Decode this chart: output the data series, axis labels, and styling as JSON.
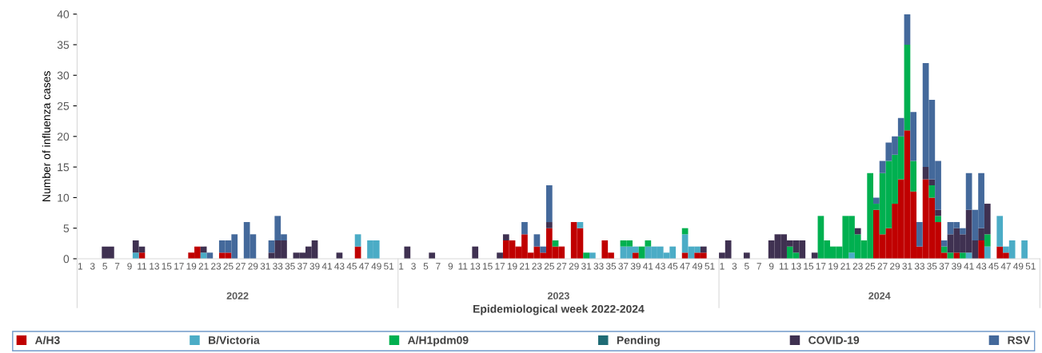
{
  "chart_data": {
    "type": "bar",
    "stacked": true,
    "ylabel": "Number of influenza cases",
    "xlabel": "Epidemiological week 2022-2024",
    "annotations": [
      "2022",
      "2023",
      "2024"
    ],
    "categories": [
      "1",
      null,
      "3",
      null,
      "5",
      null,
      "7",
      null,
      "9",
      null,
      "11",
      null,
      "13",
      null,
      "15",
      null,
      "17",
      null,
      "19",
      null,
      "21",
      null,
      "23",
      null,
      "25",
      null,
      "27",
      null,
      "29",
      null,
      "31",
      null,
      "33",
      null,
      "35",
      null,
      "37",
      null,
      "39",
      null,
      "41",
      null,
      "43",
      null,
      "45",
      null,
      "47",
      null,
      "49",
      null,
      "51",
      null,
      "1",
      null,
      "3",
      null,
      "5",
      null,
      "7",
      null,
      "9",
      null,
      "11",
      null,
      "13",
      null,
      "15",
      null,
      "17",
      null,
      "19",
      null,
      "21",
      null,
      "23",
      null,
      "25",
      null,
      "27",
      null,
      "29",
      null,
      "31",
      null,
      "33",
      null,
      "35",
      null,
      "37",
      null,
      "39",
      null,
      "41",
      null,
      "43",
      null,
      "45",
      null,
      "47",
      null,
      "49",
      null,
      "51",
      null,
      "1",
      null,
      "3",
      null,
      "5",
      null,
      "7",
      null,
      "9",
      null,
      "11",
      null,
      "13",
      null,
      "15",
      null,
      "17",
      null,
      "19",
      null,
      "21",
      null,
      "23",
      null,
      "25",
      null,
      "27",
      null,
      "29",
      null,
      "31",
      null,
      "33",
      null,
      "35",
      null,
      "37",
      null,
      "39",
      null,
      "41",
      null,
      "43",
      null,
      "45",
      null,
      "47",
      null,
      "49",
      null,
      "51",
      null
    ],
    "series": [
      {
        "name": "A/H3",
        "color": "#c00000",
        "values": [
          0,
          0,
          0,
          0,
          0,
          0,
          0,
          0,
          0,
          0,
          1,
          0,
          0,
          0,
          0,
          0,
          0,
          0,
          1,
          2,
          0,
          0,
          0,
          1,
          1,
          0,
          0,
          0,
          0,
          0,
          0,
          0,
          0,
          0,
          0,
          0,
          0,
          0,
          0,
          0,
          0,
          0,
          0,
          0,
          0,
          2,
          0,
          0,
          0,
          0,
          0,
          0,
          0,
          0,
          0,
          0,
          0,
          0,
          0,
          0,
          0,
          0,
          0,
          0,
          0,
          0,
          0,
          0,
          0,
          3,
          3,
          2,
          4,
          1,
          2,
          1,
          5,
          2,
          2,
          0,
          6,
          5,
          0,
          0,
          0,
          3,
          1,
          0,
          0,
          0,
          1,
          0,
          0,
          0,
          0,
          0,
          0,
          0,
          1,
          0,
          1,
          1,
          0,
          0,
          0,
          0,
          0,
          0,
          0,
          0,
          0,
          0,
          0,
          0,
          0,
          0,
          0,
          0,
          0,
          0,
          0,
          0,
          0,
          0,
          0,
          0,
          0,
          0,
          0,
          8,
          4,
          5,
          9,
          13,
          21,
          11,
          2,
          13,
          10,
          6,
          1,
          0,
          1,
          0,
          0,
          0,
          3,
          0,
          0,
          2,
          1,
          0,
          0,
          0,
          0,
          0
        ]
      },
      {
        "name": "B/Victoria",
        "color": "#4bacc6",
        "values": [
          0,
          0,
          0,
          0,
          0,
          0,
          0,
          0,
          0,
          1,
          0,
          0,
          0,
          0,
          0,
          0,
          0,
          0,
          0,
          0,
          1,
          0,
          0,
          0,
          0,
          0,
          0,
          0,
          0,
          0,
          0,
          0,
          0,
          0,
          0,
          0,
          0,
          0,
          0,
          0,
          0,
          0,
          0,
          0,
          0,
          2,
          0,
          3,
          3,
          0,
          0,
          0,
          0,
          0,
          0,
          0,
          0,
          0,
          0,
          0,
          0,
          0,
          0,
          0,
          0,
          0,
          0,
          0,
          0,
          0,
          0,
          0,
          0,
          0,
          0,
          0,
          0,
          0,
          0,
          0,
          0,
          1,
          0,
          1,
          0,
          0,
          0,
          0,
          2,
          2,
          1,
          0,
          2,
          2,
          2,
          1,
          2,
          0,
          3,
          2,
          1,
          0,
          0,
          0,
          0,
          0,
          0,
          0,
          0,
          0,
          0,
          0,
          0,
          0,
          0,
          0,
          0,
          0,
          0,
          0,
          0,
          0,
          0,
          0,
          0,
          1,
          0,
          0,
          0,
          0,
          0,
          0,
          0,
          0,
          0,
          0,
          0,
          0,
          0,
          0,
          0,
          0,
          0,
          0,
          1,
          0,
          0,
          2,
          0,
          5,
          1,
          3,
          0,
          3,
          0,
          0
        ]
      },
      {
        "name": "A/H1pdm09",
        "color": "#00b050",
        "values": [
          0,
          0,
          0,
          0,
          0,
          0,
          0,
          0,
          0,
          0,
          0,
          0,
          0,
          0,
          0,
          0,
          0,
          0,
          0,
          0,
          0,
          0,
          0,
          0,
          0,
          0,
          0,
          0,
          0,
          0,
          0,
          0,
          0,
          0,
          0,
          0,
          0,
          0,
          0,
          0,
          0,
          0,
          0,
          0,
          0,
          0,
          0,
          0,
          0,
          0,
          0,
          0,
          0,
          0,
          0,
          0,
          0,
          0,
          0,
          0,
          0,
          0,
          0,
          0,
          0,
          0,
          0,
          0,
          0,
          0,
          0,
          0,
          0,
          0,
          0,
          0,
          0,
          1,
          0,
          0,
          0,
          0,
          1,
          0,
          0,
          0,
          0,
          0,
          1,
          1,
          0,
          2,
          1,
          0,
          0,
          0,
          0,
          0,
          1,
          0,
          0,
          0,
          0,
          0,
          0,
          0,
          0,
          0,
          0,
          0,
          0,
          0,
          0,
          0,
          0,
          2,
          1,
          0,
          0,
          0,
          7,
          3,
          2,
          2,
          7,
          6,
          4,
          3,
          14,
          1,
          10,
          11,
          8,
          7,
          14,
          5,
          0,
          0,
          2,
          1,
          1,
          1,
          0,
          1,
          0,
          0,
          0,
          2,
          0,
          0,
          0,
          0,
          0,
          0,
          0,
          0
        ]
      },
      {
        "name": "Pending",
        "color": "#1f6b75",
        "values": [
          0,
          0,
          0,
          0,
          0,
          0,
          0,
          0,
          0,
          0,
          0,
          0,
          0,
          0,
          0,
          0,
          0,
          0,
          0,
          0,
          0,
          0,
          0,
          0,
          0,
          0,
          0,
          0,
          0,
          0,
          0,
          0,
          0,
          0,
          0,
          0,
          0,
          0,
          0,
          0,
          0,
          0,
          0,
          0,
          0,
          0,
          0,
          0,
          0,
          0,
          0,
          0,
          0,
          0,
          0,
          0,
          0,
          0,
          0,
          0,
          0,
          0,
          0,
          0,
          0,
          0,
          0,
          0,
          0,
          0,
          0,
          0,
          0,
          0,
          0,
          0,
          0,
          0,
          0,
          0,
          0,
          0,
          0,
          0,
          0,
          0,
          0,
          0,
          0,
          0,
          0,
          0,
          0,
          0,
          0,
          0,
          0,
          0,
          0,
          0,
          0,
          0,
          0,
          0,
          0,
          0,
          0,
          0,
          0,
          0,
          0,
          0,
          0,
          0,
          0,
          0,
          0,
          0,
          0,
          0,
          0,
          0,
          0,
          0,
          0,
          0,
          0,
          0,
          0,
          0,
          0,
          0,
          0,
          0,
          0,
          0,
          0,
          0,
          0,
          0,
          0,
          0,
          0,
          0,
          0,
          0,
          0,
          0,
          0,
          0,
          0,
          0,
          0,
          0,
          0,
          0
        ]
      },
      {
        "name": "COVID-19",
        "color": "#3f3151",
        "values": [
          0,
          0,
          0,
          0,
          2,
          2,
          0,
          0,
          0,
          2,
          1,
          0,
          0,
          0,
          0,
          0,
          0,
          0,
          0,
          0,
          1,
          0,
          0,
          0,
          0,
          0,
          0,
          0,
          0,
          0,
          0,
          1,
          3,
          3,
          0,
          1,
          1,
          2,
          3,
          0,
          0,
          0,
          1,
          0,
          0,
          0,
          0,
          0,
          0,
          0,
          0,
          0,
          0,
          2,
          0,
          0,
          0,
          1,
          0,
          0,
          0,
          0,
          0,
          0,
          2,
          0,
          0,
          0,
          1,
          1,
          0,
          0,
          0,
          0,
          0,
          0,
          1,
          0,
          0,
          0,
          0,
          0,
          0,
          0,
          0,
          0,
          0,
          0,
          0,
          0,
          0,
          0,
          0,
          0,
          0,
          0,
          0,
          0,
          0,
          0,
          0,
          1,
          0,
          0,
          1,
          3,
          0,
          0,
          1,
          0,
          0,
          0,
          3,
          4,
          4,
          1,
          2,
          3,
          0,
          1,
          0,
          0,
          0,
          0,
          0,
          0,
          1,
          0,
          0,
          0,
          0,
          0,
          0,
          0,
          0,
          0,
          0,
          2,
          1,
          1,
          0,
          3,
          4,
          3,
          7,
          3,
          2,
          5,
          0,
          0,
          0,
          0,
          0,
          0,
          0,
          0
        ]
      },
      {
        "name": "RSV",
        "color": "#44699b",
        "values": [
          0,
          0,
          0,
          0,
          0,
          0,
          0,
          0,
          0,
          0,
          0,
          0,
          0,
          0,
          0,
          0,
          0,
          0,
          0,
          0,
          0,
          1,
          0,
          2,
          2,
          4,
          0,
          6,
          4,
          0,
          0,
          2,
          4,
          1,
          0,
          0,
          0,
          0,
          0,
          0,
          0,
          0,
          0,
          0,
          0,
          0,
          0,
          0,
          0,
          0,
          0,
          0,
          0,
          0,
          0,
          0,
          0,
          0,
          0,
          0,
          0,
          0,
          0,
          0,
          0,
          0,
          0,
          0,
          0,
          0,
          0,
          0,
          2,
          0,
          2,
          1,
          6,
          0,
          0,
          0,
          0,
          0,
          0,
          0,
          0,
          0,
          0,
          0,
          0,
          0,
          0,
          0,
          0,
          0,
          0,
          0,
          0,
          0,
          0,
          0,
          0,
          0,
          0,
          0,
          0,
          0,
          0,
          0,
          0,
          0,
          0,
          0,
          0,
          0,
          0,
          0,
          0,
          0,
          0,
          0,
          0,
          0,
          0,
          0,
          0,
          0,
          0,
          0,
          0,
          1,
          2,
          3,
          3,
          3,
          5,
          8,
          4,
          17,
          13,
          8,
          1,
          2,
          1,
          1,
          6,
          5,
          9,
          0,
          0,
          0,
          0,
          0,
          0,
          0,
          0,
          0
        ]
      }
    ],
    "ylim": [
      0,
      40
    ],
    "yticks": [
      0,
      5,
      10,
      15,
      20,
      25,
      30,
      35,
      40
    ],
    "grid": false,
    "legend": "bottom"
  }
}
